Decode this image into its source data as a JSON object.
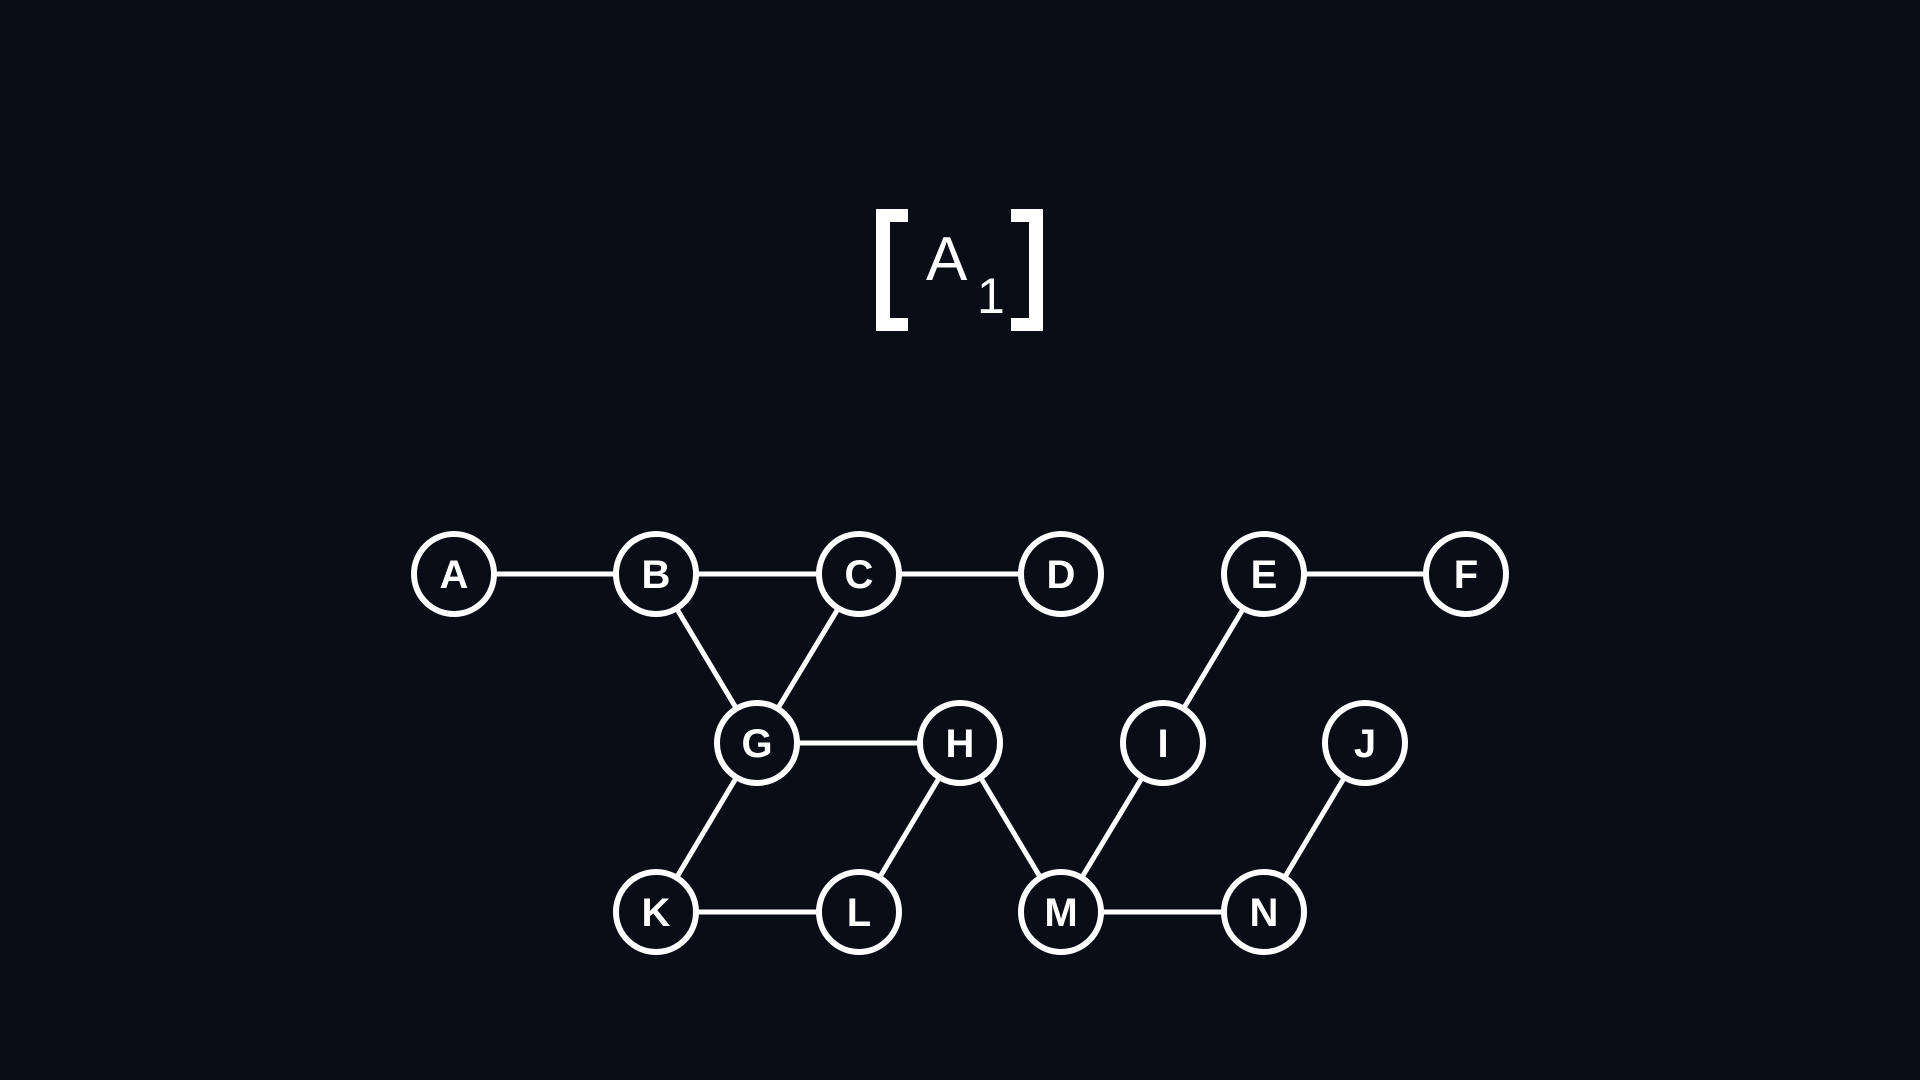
{
  "logo": {
    "letter": "A",
    "subscript": "1",
    "color": "#ffffff"
  },
  "colors": {
    "background": "#0a0c16",
    "stroke": "#ffffff"
  },
  "graph": {
    "nodes": [
      {
        "id": "A",
        "label": "A"
      },
      {
        "id": "B",
        "label": "B"
      },
      {
        "id": "C",
        "label": "C"
      },
      {
        "id": "D",
        "label": "D"
      },
      {
        "id": "E",
        "label": "E"
      },
      {
        "id": "F",
        "label": "F"
      },
      {
        "id": "G",
        "label": "G"
      },
      {
        "id": "H",
        "label": "H"
      },
      {
        "id": "I",
        "label": "I"
      },
      {
        "id": "J",
        "label": "J"
      },
      {
        "id": "K",
        "label": "K"
      },
      {
        "id": "L",
        "label": "L"
      },
      {
        "id": "M",
        "label": "M"
      },
      {
        "id": "N",
        "label": "N"
      }
    ],
    "edges": [
      [
        "A",
        "B"
      ],
      [
        "B",
        "C"
      ],
      [
        "C",
        "D"
      ],
      [
        "E",
        "F"
      ],
      [
        "B",
        "G"
      ],
      [
        "C",
        "G"
      ],
      [
        "G",
        "H"
      ],
      [
        "E",
        "I"
      ],
      [
        "G",
        "K"
      ],
      [
        "H",
        "L"
      ],
      [
        "H",
        "M"
      ],
      [
        "I",
        "M"
      ],
      [
        "J",
        "N"
      ],
      [
        "K",
        "L"
      ],
      [
        "M",
        "N"
      ]
    ]
  }
}
